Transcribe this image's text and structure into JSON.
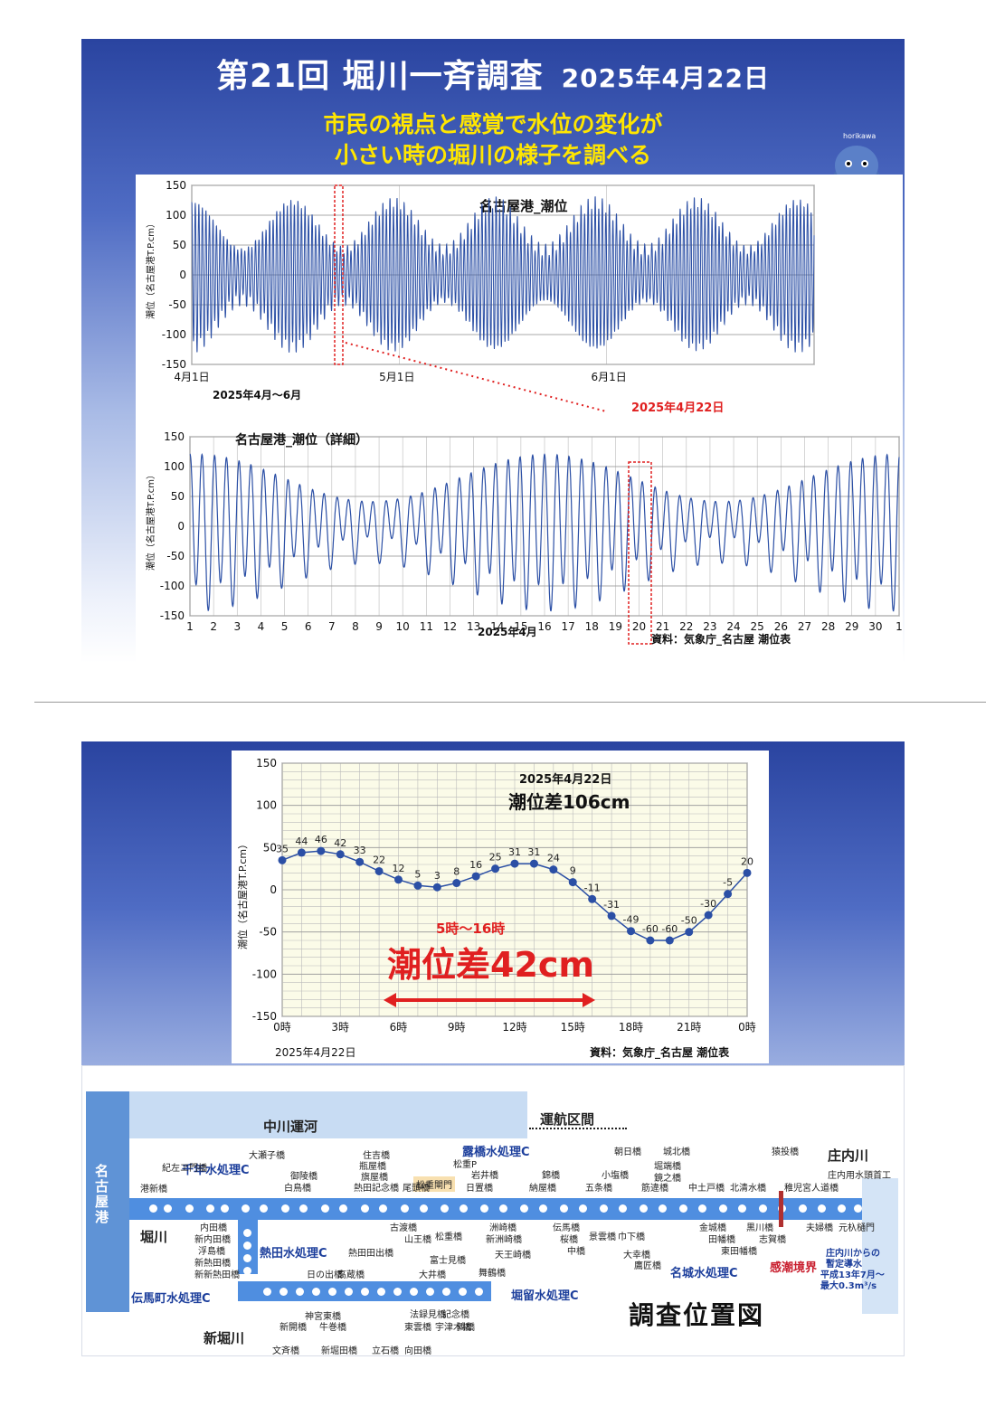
{
  "top": {
    "title": "第21回 堀川一斉調査",
    "date": "2025年4月22日",
    "subtitle_line1": "市民の視点と感覚で水位の変化が",
    "subtitle_line2": "小さい時の堀川の様子を調べる",
    "mascot_text": "horikawa"
  },
  "chart1": {
    "type": "line",
    "title": "名古屋港_潮位",
    "ylabel": "潮位（名古屋港T.P.cm）",
    "ylim": [
      -150,
      150
    ],
    "yticks": [
      "150",
      "100",
      "50",
      "0",
      "-50",
      "-100",
      "-150"
    ],
    "xticks": [
      "4月1日",
      "5月1日",
      "6月1日"
    ],
    "period_label": "2025年4月～6月",
    "highlight_date": "2025年4月22日",
    "series_note": "semi-diurnal tide, amplitude ~40-125 cm, spring/neap cycles"
  },
  "chart2": {
    "type": "line",
    "title": "名古屋港_潮位（詳細）",
    "ylabel": "潮位（名古屋港T.P.cm）",
    "ylim": [
      -150,
      150
    ],
    "yticks": [
      "150",
      "100",
      "50",
      "0",
      "-50",
      "-100",
      "-150"
    ],
    "xticks": [
      "1",
      "2",
      "3",
      "4",
      "5",
      "6",
      "7",
      "8",
      "9",
      "10",
      "11",
      "12",
      "13",
      "14",
      "15",
      "16",
      "17",
      "18",
      "19",
      "20",
      "21",
      "22",
      "23",
      "24",
      "25",
      "26",
      "27",
      "28",
      "29",
      "30",
      "1"
    ],
    "xlabel": "2025年4月",
    "source": "資料：気象庁_名古屋 潮位表"
  },
  "chart_data": {
    "type": "line",
    "title": "2025年4月22日",
    "subtitle": "潮位差106cm",
    "ylabel": "潮位（名古屋港T.P.cm）",
    "ylim": [
      -150,
      150
    ],
    "yticks": [
      "150",
      "100",
      "50",
      "0",
      "-50",
      "-100",
      "-150"
    ],
    "x": [
      0,
      1,
      2,
      3,
      4,
      5,
      6,
      7,
      8,
      9,
      10,
      11,
      12,
      13,
      14,
      15,
      16,
      17,
      18,
      19,
      20,
      21,
      22,
      23,
      24
    ],
    "values": [
      35,
      44,
      46,
      42,
      33,
      22,
      12,
      5,
      3,
      8,
      16,
      25,
      31,
      31,
      24,
      9,
      -11,
      -31,
      -49,
      -60,
      -60,
      -50,
      -30,
      -5,
      20
    ],
    "xticks": [
      "0時",
      "3時",
      "6時",
      "9時",
      "12時",
      "15時",
      "18時",
      "21時",
      "0時"
    ],
    "xlabel": "2025年4月22日",
    "range_label": "5時～16時",
    "range_diff": "潮位差42cm",
    "source": "資料：気象庁_名古屋 潮位表"
  },
  "map": {
    "title": "調査位置図",
    "nagoya_port": "名古屋港",
    "nakagawa": "中川運河",
    "horikawa": "堀川",
    "shinhorikawa": "新堀川",
    "shonai": "庄内川",
    "service_section": "運航区間",
    "kancho": "感潮境界",
    "shonai_note1": "庄内川からの",
    "shonai_note2": "暫定導水",
    "shonai_note3": "平成13年7月～",
    "shonai_note4": "最大0.3m³/s",
    "plants": [
      "千年水処理C",
      "熱田水処理C",
      "伝馬町水処理C",
      "露橋水処理C",
      "堀留水処理C",
      "名城水処理C"
    ],
    "matsushige_gate": "松重閘門",
    "matsushige_p": "松重P",
    "bridges_upper": [
      "港新橋",
      "紀左ヱ門橋",
      "大瀬子橋",
      "御陵橋",
      "白鳥橋",
      "住吉橋",
      "瓶屋橋",
      "旗屋橋",
      "熱田記念橋",
      "尾頭橋",
      "岩井橋",
      "日置橋",
      "錦橋",
      "納屋橋",
      "五条橋",
      "朝日橋",
      "小塩橋",
      "城北橋",
      "堀端橋",
      "鏡之橋",
      "筋違橋",
      "中土戸橋",
      "猿投橋",
      "北清水橋",
      "稚児宮人道橋",
      "庄内用水頭首工"
    ],
    "bridges_lower": [
      "内田橋",
      "新内田橋",
      "浮島橋",
      "新熱田橋",
      "新新熱田橋",
      "古渡橋",
      "山王橋",
      "松重橋",
      "洲崎橋",
      "新洲崎橋",
      "天王崎橋",
      "伝馬橋",
      "桜橋",
      "中橋",
      "景雲橋",
      "巾下橋",
      "大幸橋",
      "鷹匠橋",
      "金城橋",
      "田幡橋",
      "東田幡橋",
      "黒川橋",
      "志賀橋",
      "夫婦橋",
      "元杁樋門"
    ],
    "bridges_shinhori": [
      "熱田田出橋",
      "日の出橋",
      "高蔵橋",
      "富士見橋",
      "大井橋",
      "舞鶴橋",
      "神宮東橋",
      "牛巻橋",
      "新開橋",
      "文斉橋",
      "新堀田橋",
      "法録見橋",
      "東雲橋",
      "記念橋",
      "宇津木橋",
      "鶉橋",
      "立石橋",
      "向田橋"
    ]
  }
}
